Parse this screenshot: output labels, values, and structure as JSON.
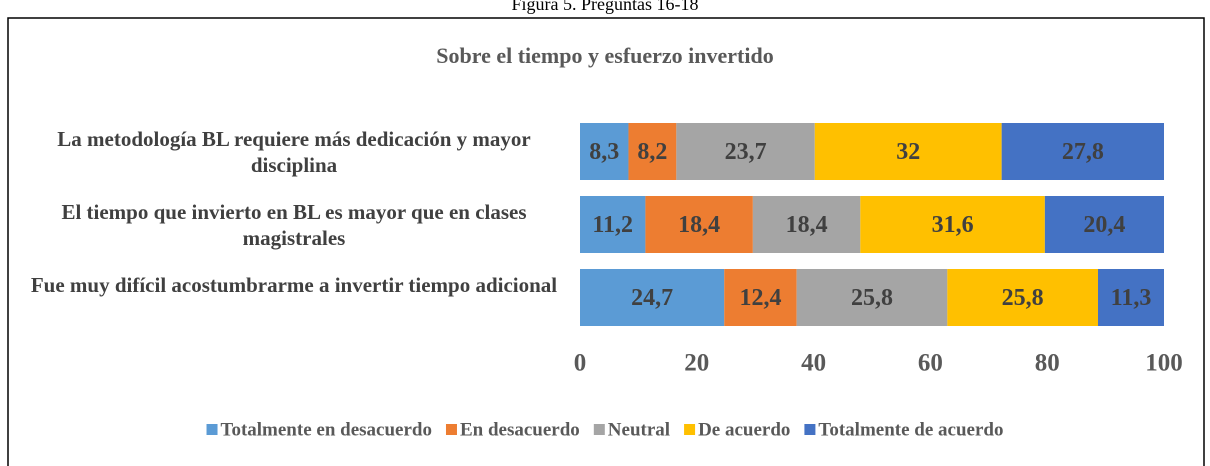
{
  "caption": "Figura 5. Preguntas 16-18",
  "chart_data": {
    "type": "stacked_barh",
    "title": "Sobre el tiempo y esfuerzo invertido",
    "categories": [
      "La metodología BL requiere más dedicación y mayor disciplina",
      "El tiempo que invierto en BL es mayor que en clases magistrales",
      "Fue muy difícil acostumbrarme a invertir tiempo adicional"
    ],
    "series": [
      {
        "name": "Totalmente en desacuerdo",
        "color": "#5b9bd5",
        "values": [
          8.3,
          11.2,
          24.7
        ],
        "value_labels": [
          "8,3",
          "11,2",
          "24,7"
        ]
      },
      {
        "name": "En desacuerdo",
        "color": "#ed7d31",
        "values": [
          8.2,
          18.4,
          12.4
        ],
        "value_labels": [
          "8,2",
          "18,4",
          "12,4"
        ]
      },
      {
        "name": "Neutral",
        "color": "#a5a5a5",
        "values": [
          23.7,
          18.4,
          25.8
        ],
        "value_labels": [
          "23,7",
          "18,4",
          "25,8"
        ]
      },
      {
        "name": "De acuerdo",
        "color": "#ffc000",
        "values": [
          32,
          31.6,
          25.8
        ],
        "value_labels": [
          "32",
          "31,6",
          "25,8"
        ]
      },
      {
        "name": "Totalmente de acuerdo",
        "color": "#4472c4",
        "values": [
          27.8,
          20.4,
          11.3
        ],
        "value_labels": [
          "27,8",
          "20,4",
          "11,3"
        ]
      }
    ],
    "xlim": [
      0,
      100
    ],
    "xticks": [
      0,
      20,
      40,
      60,
      80,
      100
    ],
    "legend": "bottom"
  }
}
